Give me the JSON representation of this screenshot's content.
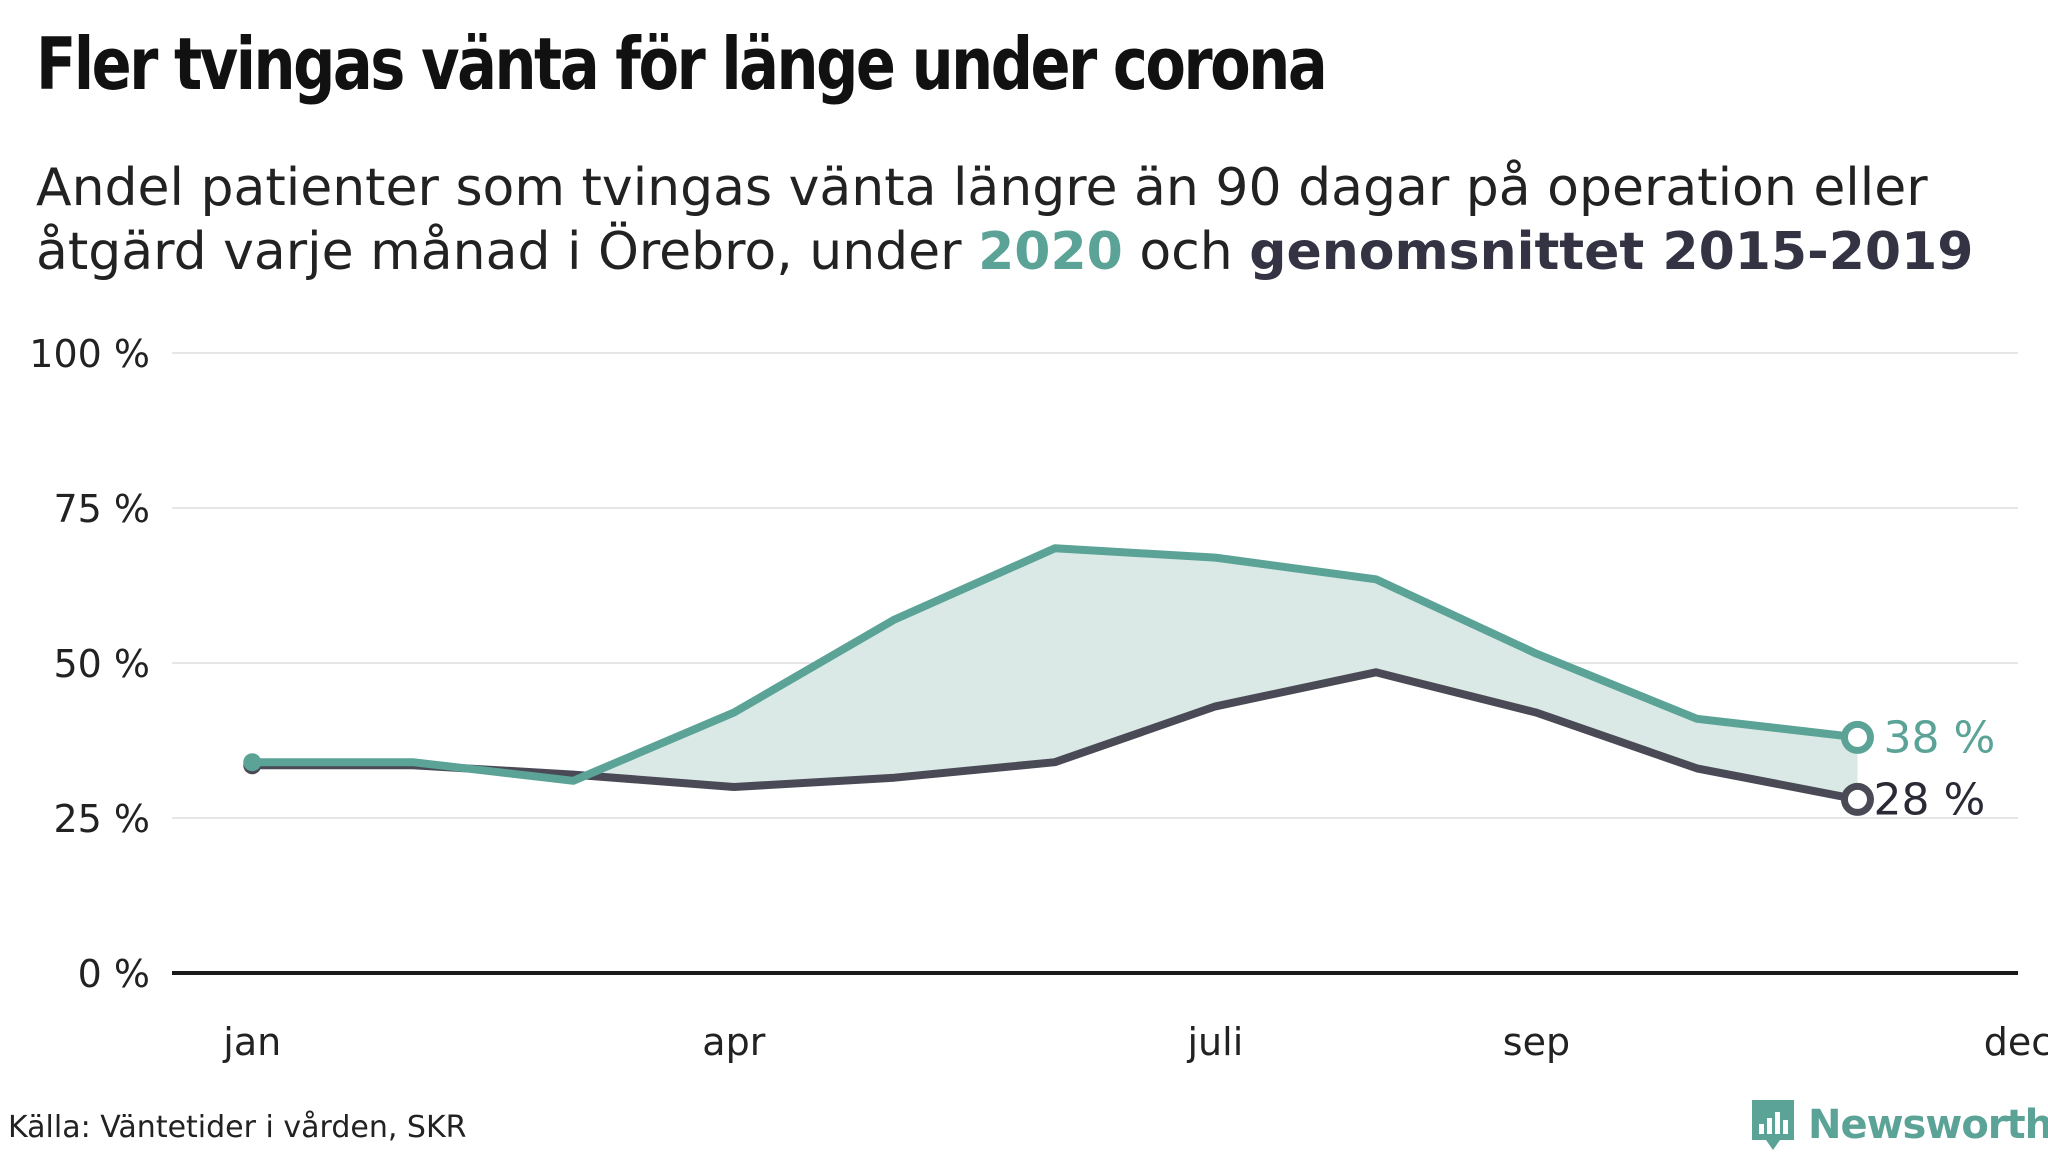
{
  "title": "Fler tvingas vänta för länge under corona",
  "subtitle": {
    "text_before": "Andel patienter som tvingas vänta längre än 90 dagar på operation eller åtgärd varje månad i Örebro, under ",
    "highlight_2020": "2020",
    "text_middle": " och ",
    "highlight_avg": "genomsnittet 2015-2019"
  },
  "source": "Källa: Väntetider i vården, SKR",
  "logo": {
    "text": "Newsworthy",
    "icon": "newsworthy-bar-chart-icon"
  },
  "colors": {
    "series_2020": "#5aa396",
    "series_avg": "#4a4a56",
    "area_fill": "#dbe9e6",
    "grid": "#e6e6e6",
    "axis": "#1a1a1a"
  },
  "chart_data": {
    "type": "line",
    "x": [
      1,
      2,
      3,
      4,
      5,
      6,
      7,
      8,
      9,
      10,
      11
    ],
    "x_ticks": [
      {
        "value": 1,
        "label": "jan"
      },
      {
        "value": 4,
        "label": "apr"
      },
      {
        "value": 7,
        "label": "juli"
      },
      {
        "value": 9,
        "label": "sep"
      },
      {
        "value": 12,
        "label": "dec"
      }
    ],
    "xlim": [
      0.5,
      12
    ],
    "ylim": [
      0,
      100
    ],
    "y_ticks": [
      {
        "value": 0,
        "label": "0 %"
      },
      {
        "value": 25,
        "label": "25 %"
      },
      {
        "value": 50,
        "label": "50 %"
      },
      {
        "value": 75,
        "label": "75 %"
      },
      {
        "value": 100,
        "label": "100 %"
      }
    ],
    "grid": true,
    "series": [
      {
        "name": "genomsnittet 2015-2019",
        "color": "#4a4a56",
        "values": [
          33.5,
          33.5,
          32,
          30,
          31.5,
          34,
          43,
          48.5,
          42,
          33,
          28
        ],
        "end_label": "28 %"
      },
      {
        "name": "2020",
        "color": "#5aa396",
        "values": [
          34,
          34,
          31,
          42,
          57,
          68.5,
          67,
          63.5,
          51.5,
          41,
          38
        ],
        "end_label": "38 %"
      }
    ]
  }
}
